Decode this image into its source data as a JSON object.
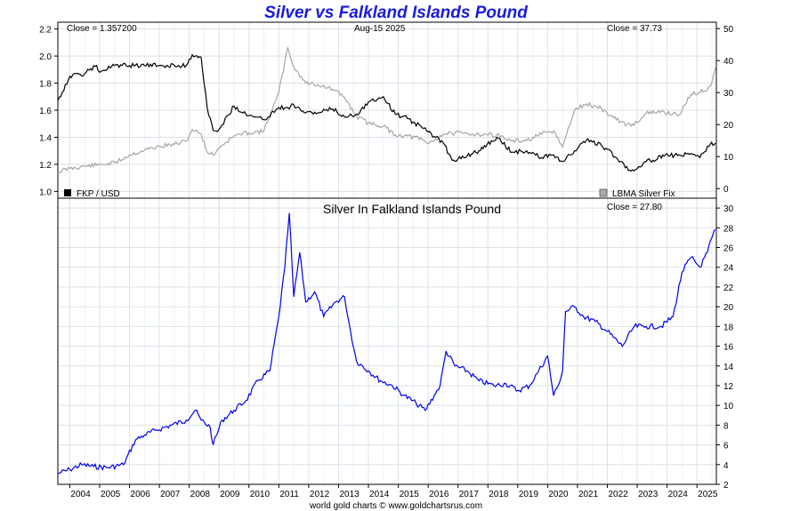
{
  "title": "Silver vs Falkland Islands Pound",
  "footer": "world gold charts © www.goldchartsrus.com",
  "colors": {
    "title": "#1a1adf",
    "fkp": "#000000",
    "lbma": "#a6a6a6",
    "silver_fkp": "#0000ee",
    "grid": "#d9e2ea"
  },
  "chart_data": [
    {
      "type": "line",
      "panel": "top",
      "date_label": "Aug-15  2025",
      "close_left_label": "Close = 1.357200",
      "close_right_label": "Close = 37.73",
      "left_axis": {
        "ylim": [
          0.95,
          2.25
        ],
        "ticks": [
          "1.0",
          "1.2",
          "1.4",
          "1.6",
          "1.8",
          "2.0",
          "2.2"
        ]
      },
      "right_axis": {
        "ylim": [
          -3,
          52
        ],
        "ticks": [
          "0",
          "10",
          "20",
          "30",
          "40",
          "50"
        ]
      },
      "x": [
        2003.6,
        2004.0,
        2004.5,
        2004.9,
        2005.0,
        2005.5,
        2006.0,
        2006.5,
        2007.0,
        2007.5,
        2007.9,
        2008.1,
        2008.4,
        2008.6,
        2008.8,
        2009.0,
        2009.5,
        2010.0,
        2010.5,
        2011.0,
        2011.3,
        2011.5,
        2011.9,
        2012.3,
        2012.8,
        2013.2,
        2013.6,
        2014.0,
        2014.5,
        2014.9,
        2015.3,
        2015.8,
        2016.0,
        2016.5,
        2016.8,
        2017.3,
        2017.7,
        2018.3,
        2018.8,
        2019.3,
        2019.8,
        2020.2,
        2020.5,
        2020.9,
        2021.3,
        2021.8,
        2022.3,
        2022.8,
        2023.3,
        2023.9,
        2024.4,
        2024.8,
        2025.1,
        2025.45,
        2025.62
      ],
      "series": [
        {
          "name": "FKP / USD",
          "axis": "left",
          "values": [
            1.67,
            1.85,
            1.87,
            1.93,
            1.88,
            1.93,
            1.93,
            1.93,
            1.93,
            1.93,
            1.93,
            2.01,
            1.99,
            1.62,
            1.45,
            1.46,
            1.63,
            1.56,
            1.53,
            1.62,
            1.62,
            1.64,
            1.58,
            1.58,
            1.61,
            1.55,
            1.57,
            1.66,
            1.7,
            1.57,
            1.54,
            1.47,
            1.44,
            1.36,
            1.23,
            1.26,
            1.3,
            1.4,
            1.29,
            1.3,
            1.25,
            1.27,
            1.22,
            1.3,
            1.38,
            1.34,
            1.25,
            1.15,
            1.22,
            1.26,
            1.27,
            1.28,
            1.25,
            1.35,
            1.357
          ]
        },
        {
          "name": "LBMA Silver Fix",
          "axis": "right",
          "values": [
            5.2,
            6.3,
            7.0,
            7.3,
            7.5,
            8.0,
            10.5,
            12.0,
            13.2,
            13.8,
            14.8,
            18.5,
            17.0,
            11.5,
            10.5,
            12.8,
            16.5,
            17.5,
            18.0,
            30.0,
            44.0,
            38.0,
            33.0,
            32.5,
            31.0,
            28.5,
            22.5,
            20.5,
            19.5,
            16.8,
            16.5,
            15.3,
            14.0,
            17.0,
            17.3,
            17.2,
            17.0,
            16.8,
            14.8,
            15.0,
            17.0,
            18.0,
            13.0,
            24.5,
            26.5,
            25.0,
            21.5,
            19.5,
            23.5,
            24.0,
            23.0,
            29.5,
            30.0,
            32.0,
            37.73
          ]
        }
      ]
    },
    {
      "type": "line",
      "panel": "bottom",
      "title": "Silver In Falkland Islands Pound",
      "close_label": "Close = 27.80",
      "ylim": [
        2,
        31
      ],
      "yticks": [
        "2",
        "4",
        "6",
        "8",
        "10",
        "12",
        "14",
        "16",
        "18",
        "20",
        "22",
        "24",
        "26",
        "28",
        "30"
      ],
      "x_ticks": [
        "2004",
        "2005",
        "2006",
        "2007",
        "2008",
        "2009",
        "2010",
        "2011",
        "2012",
        "2013",
        "2014",
        "2015",
        "2016",
        "2017",
        "2018",
        "2019",
        "2020",
        "2021",
        "2022",
        "2023",
        "2024",
        "2025"
      ],
      "x": [
        2003.6,
        2004.0,
        2004.4,
        2004.8,
        2005.3,
        2005.8,
        2006.2,
        2006.5,
        2006.9,
        2007.4,
        2007.9,
        2008.2,
        2008.4,
        2008.7,
        2008.8,
        2009.1,
        2009.5,
        2009.9,
        2010.3,
        2010.7,
        2011.0,
        2011.2,
        2011.35,
        2011.5,
        2011.7,
        2011.9,
        2012.2,
        2012.5,
        2012.9,
        2013.2,
        2013.4,
        2013.6,
        2014.0,
        2014.4,
        2014.8,
        2015.2,
        2015.6,
        2015.9,
        2016.2,
        2016.4,
        2016.6,
        2016.9,
        2017.3,
        2017.7,
        2018.2,
        2018.6,
        2019.0,
        2019.4,
        2019.7,
        2020.0,
        2020.2,
        2020.35,
        2020.5,
        2020.6,
        2020.9,
        2021.2,
        2021.6,
        2022.0,
        2022.5,
        2022.9,
        2023.3,
        2023.8,
        2024.2,
        2024.5,
        2024.8,
        2025.1,
        2025.35,
        2025.5,
        2025.62
      ],
      "series": [
        {
          "name": "Silver in FKP",
          "values": [
            3.1,
            3.5,
            4.0,
            3.8,
            3.7,
            4.0,
            6.5,
            7.0,
            7.5,
            8.0,
            8.5,
            9.5,
            8.5,
            7.8,
            6.0,
            8.5,
            9.5,
            10.5,
            12.5,
            13.5,
            19.0,
            24.0,
            29.5,
            21.0,
            25.5,
            20.5,
            21.5,
            19.0,
            20.5,
            21.0,
            17.5,
            14.5,
            13.5,
            12.5,
            12.0,
            11.0,
            10.2,
            9.5,
            11.0,
            12.0,
            15.5,
            14.0,
            13.5,
            12.5,
            12.0,
            12.2,
            11.5,
            12.0,
            13.5,
            15.0,
            11.0,
            12.0,
            13.5,
            19.5,
            20.0,
            19.0,
            18.5,
            17.5,
            16.0,
            18.0,
            18.0,
            18.0,
            19.0,
            23.5,
            25.0,
            24.0,
            25.5,
            27.0,
            27.8
          ]
        }
      ]
    }
  ],
  "legend": {
    "fkp_label": "FKP / USD",
    "lbma_label": "LBMA Silver Fix"
  }
}
